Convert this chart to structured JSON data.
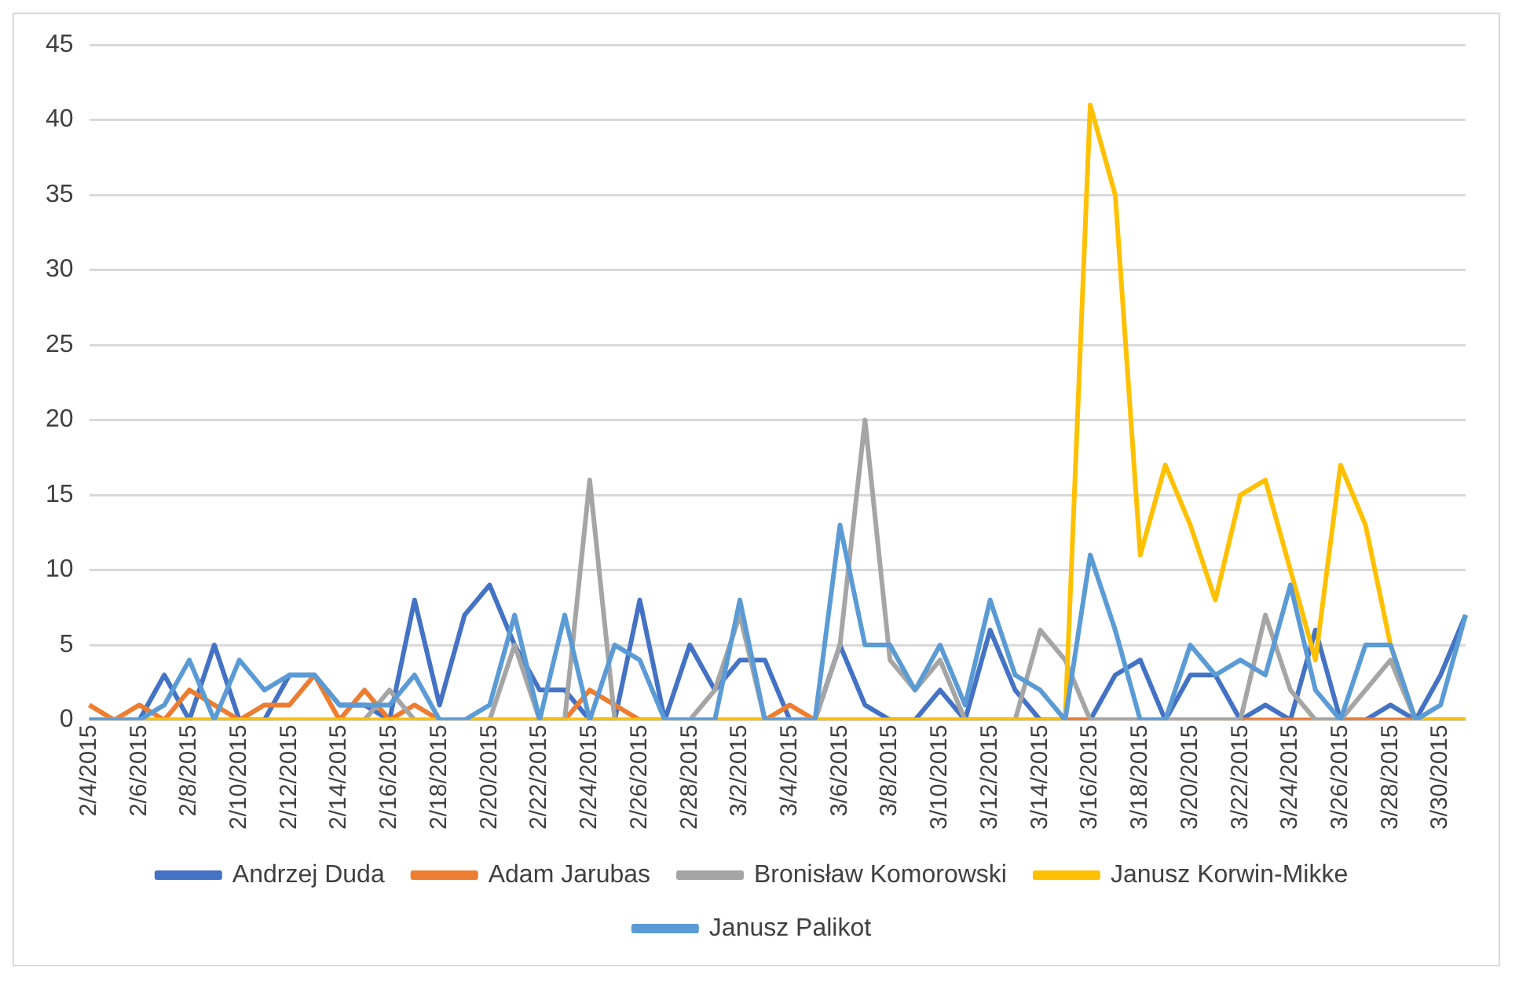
{
  "chart_data": {
    "type": "line",
    "categories": [
      "2/4/2015",
      null,
      "2/6/2015",
      null,
      "2/8/2015",
      null,
      "2/10/2015",
      null,
      "2/12/2015",
      null,
      "2/14/2015",
      null,
      "2/16/2015",
      null,
      "2/18/2015",
      null,
      "2/20/2015",
      null,
      "2/22/2015",
      null,
      "2/24/2015",
      null,
      "2/26/2015",
      null,
      "2/28/2015",
      null,
      "3/2/2015",
      null,
      "3/4/2015",
      null,
      "3/6/2015",
      null,
      "3/8/2015",
      null,
      "3/10/2015",
      null,
      "3/12/2015",
      null,
      "3/14/2015",
      null,
      "3/16/2015",
      null,
      "3/18/2015",
      null,
      "3/20/2015",
      null,
      "3/22/2015",
      null,
      "3/24/2015",
      null,
      "3/26/2015",
      null,
      "3/28/2015",
      null,
      "3/30/2015",
      null
    ],
    "series": [
      {
        "name": "Andrzej Duda",
        "color": "#4472c4",
        "values": [
          0,
          0,
          0,
          3,
          0,
          5,
          0,
          0,
          3,
          3,
          1,
          1,
          0,
          8,
          1,
          7,
          9,
          5,
          2,
          2,
          0,
          0,
          8,
          0,
          5,
          2,
          4,
          4,
          0,
          0,
          5,
          1,
          0,
          0,
          2,
          0,
          6,
          2,
          0,
          0,
          0,
          3,
          4,
          0,
          3,
          3,
          0,
          1,
          0,
          6,
          0,
          0,
          1,
          0,
          3,
          7
        ]
      },
      {
        "name": "Adam Jarubas",
        "color": "#ed7d31",
        "values": [
          1,
          0,
          1,
          0,
          2,
          1,
          0,
          1,
          1,
          3,
          0,
          2,
          0,
          1,
          0,
          0,
          0,
          0,
          0,
          0,
          2,
          1,
          0,
          0,
          0,
          0,
          0,
          0,
          1,
          0,
          0,
          0,
          0,
          0,
          0,
          0,
          0,
          0,
          0,
          0,
          0,
          0,
          0,
          0,
          0,
          0,
          0,
          0,
          0,
          0,
          0,
          0,
          0,
          0,
          0,
          0
        ]
      },
      {
        "name": "Bronisław Komorowski",
        "color": "#a5a5a5",
        "values": [
          0,
          0,
          0,
          0,
          0,
          0,
          0,
          0,
          0,
          0,
          0,
          0,
          2,
          0,
          0,
          0,
          0,
          5,
          0,
          0,
          16,
          0,
          0,
          0,
          0,
          2,
          7,
          0,
          0,
          0,
          5,
          20,
          4,
          2,
          4,
          0,
          0,
          0,
          6,
          4,
          0,
          0,
          0,
          0,
          0,
          0,
          0,
          7,
          2,
          0,
          0,
          2,
          4,
          0,
          0,
          0
        ]
      },
      {
        "name": "Janusz Korwin-Mikke",
        "color": "#ffc000",
        "values": [
          0,
          0,
          0,
          0,
          0,
          0,
          0,
          0,
          0,
          0,
          0,
          0,
          0,
          0,
          0,
          0,
          0,
          0,
          0,
          0,
          0,
          0,
          0,
          0,
          0,
          0,
          0,
          0,
          0,
          0,
          0,
          0,
          0,
          0,
          0,
          0,
          0,
          0,
          0,
          0,
          41,
          35,
          11,
          17,
          13,
          8,
          15,
          16,
          10,
          4,
          17,
          13,
          5,
          0,
          0,
          0
        ]
      },
      {
        "name": "Janusz Palikot",
        "color": "#5b9bd5",
        "values": [
          0,
          0,
          0,
          1,
          4,
          0,
          4,
          2,
          3,
          3,
          1,
          1,
          1,
          3,
          0,
          0,
          1,
          7,
          0,
          7,
          0,
          5,
          4,
          0,
          0,
          0,
          8,
          0,
          0,
          0,
          13,
          5,
          5,
          2,
          5,
          1,
          8,
          3,
          2,
          0,
          11,
          6,
          0,
          0,
          5,
          3,
          4,
          3,
          9,
          2,
          0,
          5,
          5,
          0,
          1,
          7
        ]
      }
    ],
    "ylim": [
      0,
      45
    ],
    "yticks": [
      0,
      5,
      10,
      15,
      20,
      25,
      30,
      35,
      40,
      45
    ],
    "grid": "y",
    "legend": "bottom",
    "marker": "none",
    "line_style": "solid"
  }
}
